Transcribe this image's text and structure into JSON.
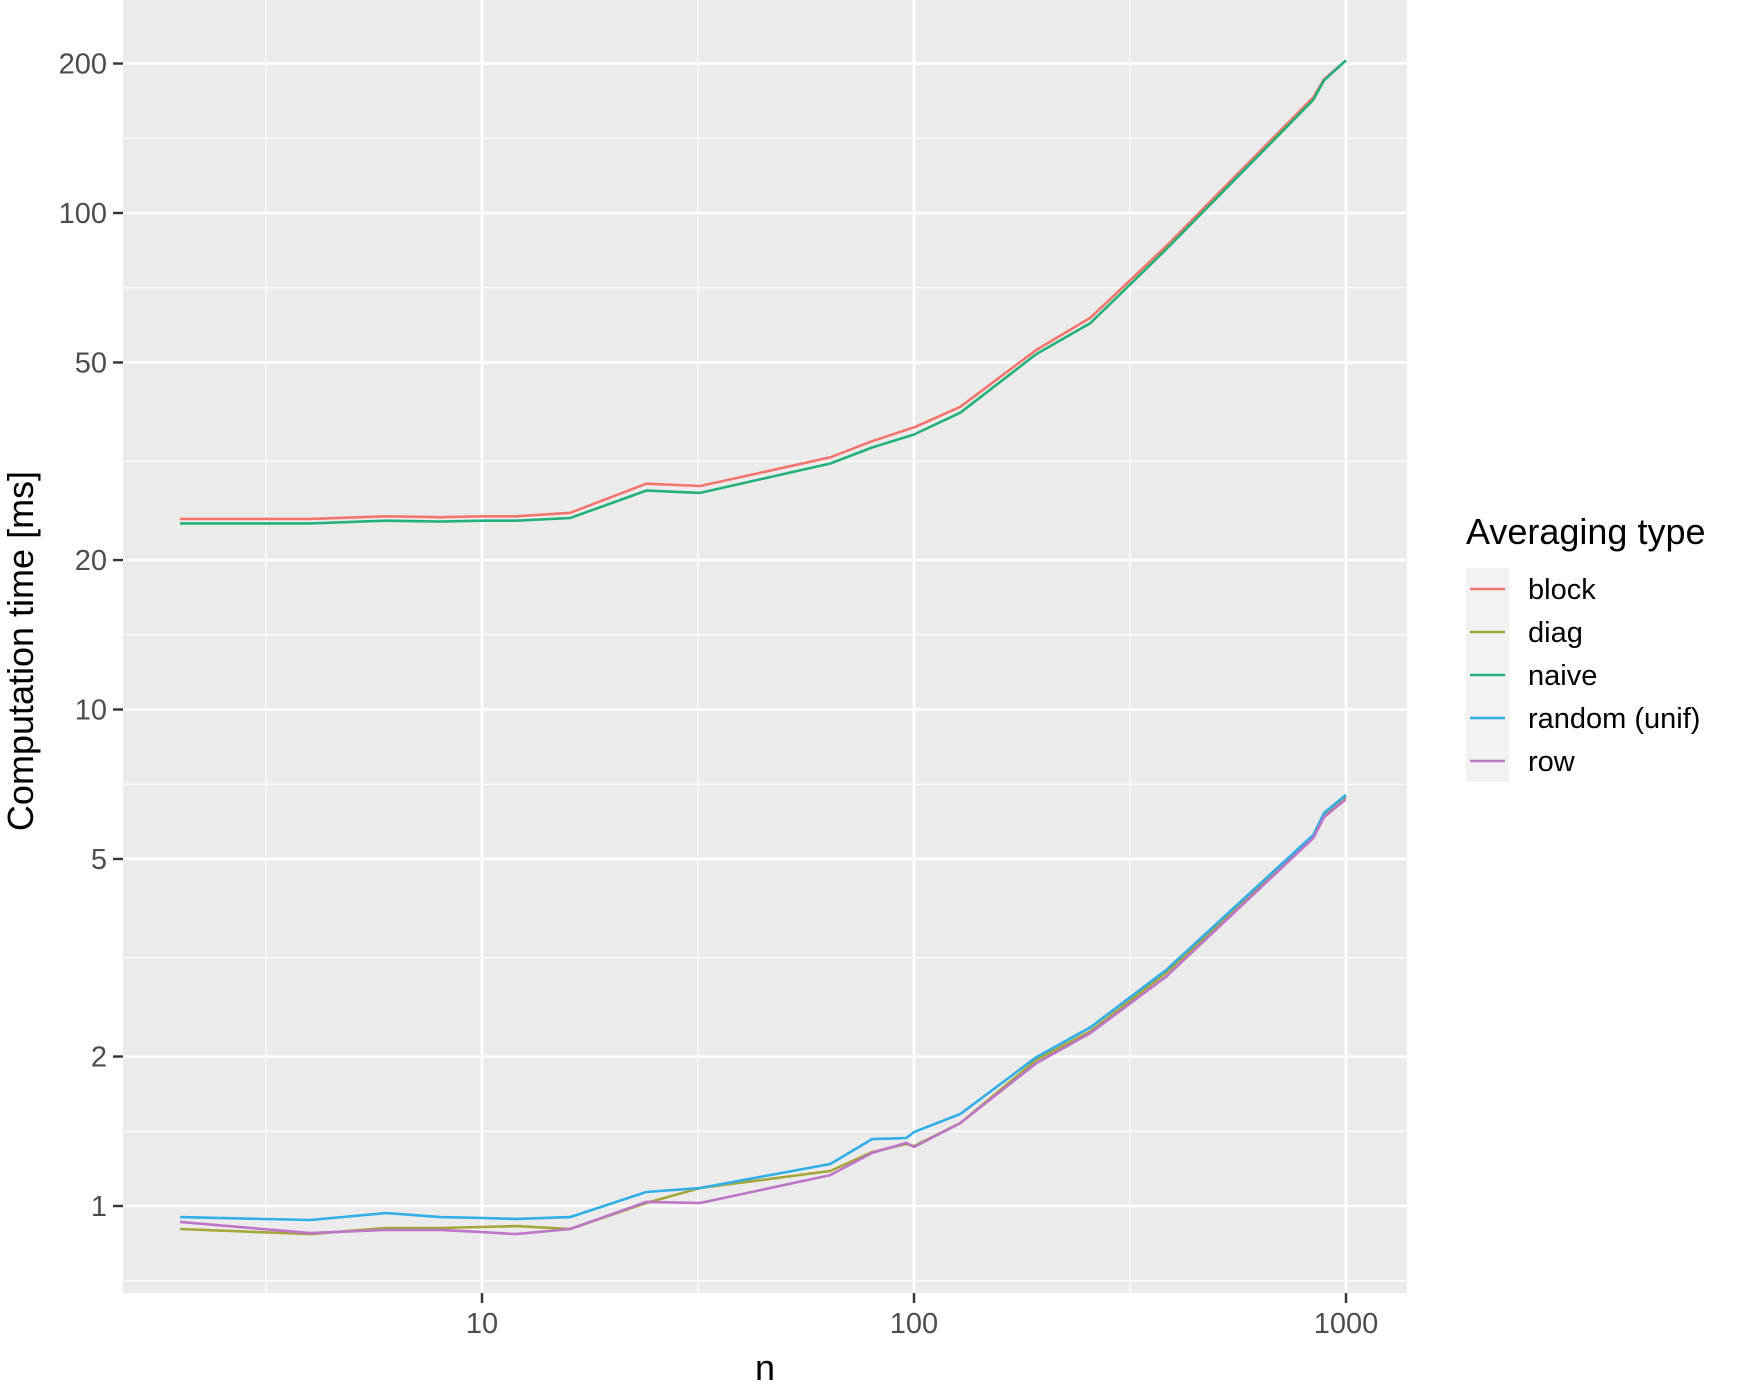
{
  "chart_data": {
    "type": "line",
    "title": "",
    "xlabel": "n",
    "ylabel": "Computation time [ms]",
    "x_scale": "log10",
    "y_scale": "log10",
    "xlim": [
      1.7,
      1860
    ],
    "ylim": [
      0.67,
      230
    ],
    "x_ticks": [
      10,
      100,
      1000
    ],
    "x_tick_labels": [
      "10",
      "100",
      "1000"
    ],
    "x_minor_ticks": [
      3.162,
      31.62,
      316.2
    ],
    "y_ticks": [
      1,
      2,
      5,
      10,
      20,
      50,
      100,
      200
    ],
    "y_tick_labels": [
      "1",
      "2",
      "5",
      "10",
      "20",
      "50",
      "100",
      "200"
    ],
    "y_minor_ticks": [
      0.7071,
      1.414,
      3.162,
      7.071,
      14.14,
      31.62,
      70.71,
      141.4
    ],
    "grid": true,
    "legend": {
      "title": "Averaging type",
      "position": "right"
    },
    "series": [
      {
        "name": "block",
        "color": "#F4756E",
        "x": [
          2,
          4,
          6,
          8,
          10,
          12,
          16,
          24,
          32,
          64,
          80,
          100,
          128,
          192,
          256,
          384,
          840,
          890,
          1000
        ],
        "values": [
          24.2,
          24.2,
          24.5,
          24.4,
          24.5,
          24.5,
          24.9,
          28.5,
          28.2,
          32.2,
          34.7,
          37.0,
          40.7,
          53.0,
          61.5,
          85.8,
          171,
          186,
          203
        ]
      },
      {
        "name": "diag",
        "color": "#A5A63A",
        "x": [
          2,
          4,
          6,
          8,
          10,
          12,
          16,
          24,
          32,
          64,
          80,
          96,
          100,
          128,
          192,
          256,
          384,
          840,
          890,
          1000
        ],
        "values": [
          0.899,
          0.878,
          0.903,
          0.903,
          0.907,
          0.911,
          0.899,
          1.014,
          1.087,
          1.176,
          1.284,
          1.333,
          1.32,
          1.469,
          1.97,
          2.25,
          2.95,
          5.55,
          6.13,
          6.67
        ]
      },
      {
        "name": "naive",
        "color": "#22B17A",
        "x": [
          2,
          4,
          6,
          8,
          10,
          12,
          16,
          24,
          32,
          64,
          80,
          100,
          128,
          192,
          256,
          384,
          840,
          890,
          1000
        ],
        "values": [
          23.7,
          23.7,
          24.0,
          23.9,
          24.0,
          24.0,
          24.3,
          27.6,
          27.3,
          31.3,
          33.7,
          35.8,
          39.6,
          52.0,
          60.0,
          84.6,
          169,
          185,
          203
        ]
      },
      {
        "name": "random (unif)",
        "color": "#2FAEE8",
        "x": [
          2,
          4,
          6,
          8,
          10,
          12,
          16,
          24,
          32,
          64,
          80,
          96,
          100,
          128,
          192,
          256,
          384,
          840,
          890,
          1000
        ],
        "values": [
          0.95,
          0.937,
          0.968,
          0.95,
          0.946,
          0.942,
          0.95,
          1.067,
          1.087,
          1.215,
          1.364,
          1.371,
          1.409,
          1.532,
          1.995,
          2.29,
          2.99,
          5.59,
          6.19,
          6.73
        ]
      },
      {
        "name": "row",
        "color": "#BD75C6",
        "x": [
          2,
          4,
          6,
          8,
          10,
          12,
          16,
          24,
          32,
          64,
          80,
          96,
          100,
          128,
          192,
          256,
          384,
          840,
          890,
          1000
        ],
        "values": [
          0.929,
          0.882,
          0.895,
          0.895,
          0.886,
          0.878,
          0.899,
          1.019,
          1.014,
          1.154,
          1.279,
          1.34,
          1.315,
          1.469,
          1.94,
          2.23,
          2.9,
          5.51,
          6.07,
          6.6
        ]
      }
    ]
  },
  "style": {
    "panel_background": "#EBEBEB",
    "grid_color": "#FFFFFF",
    "legend_key_background": "#F2F2F2",
    "tick_color": "#333333"
  }
}
